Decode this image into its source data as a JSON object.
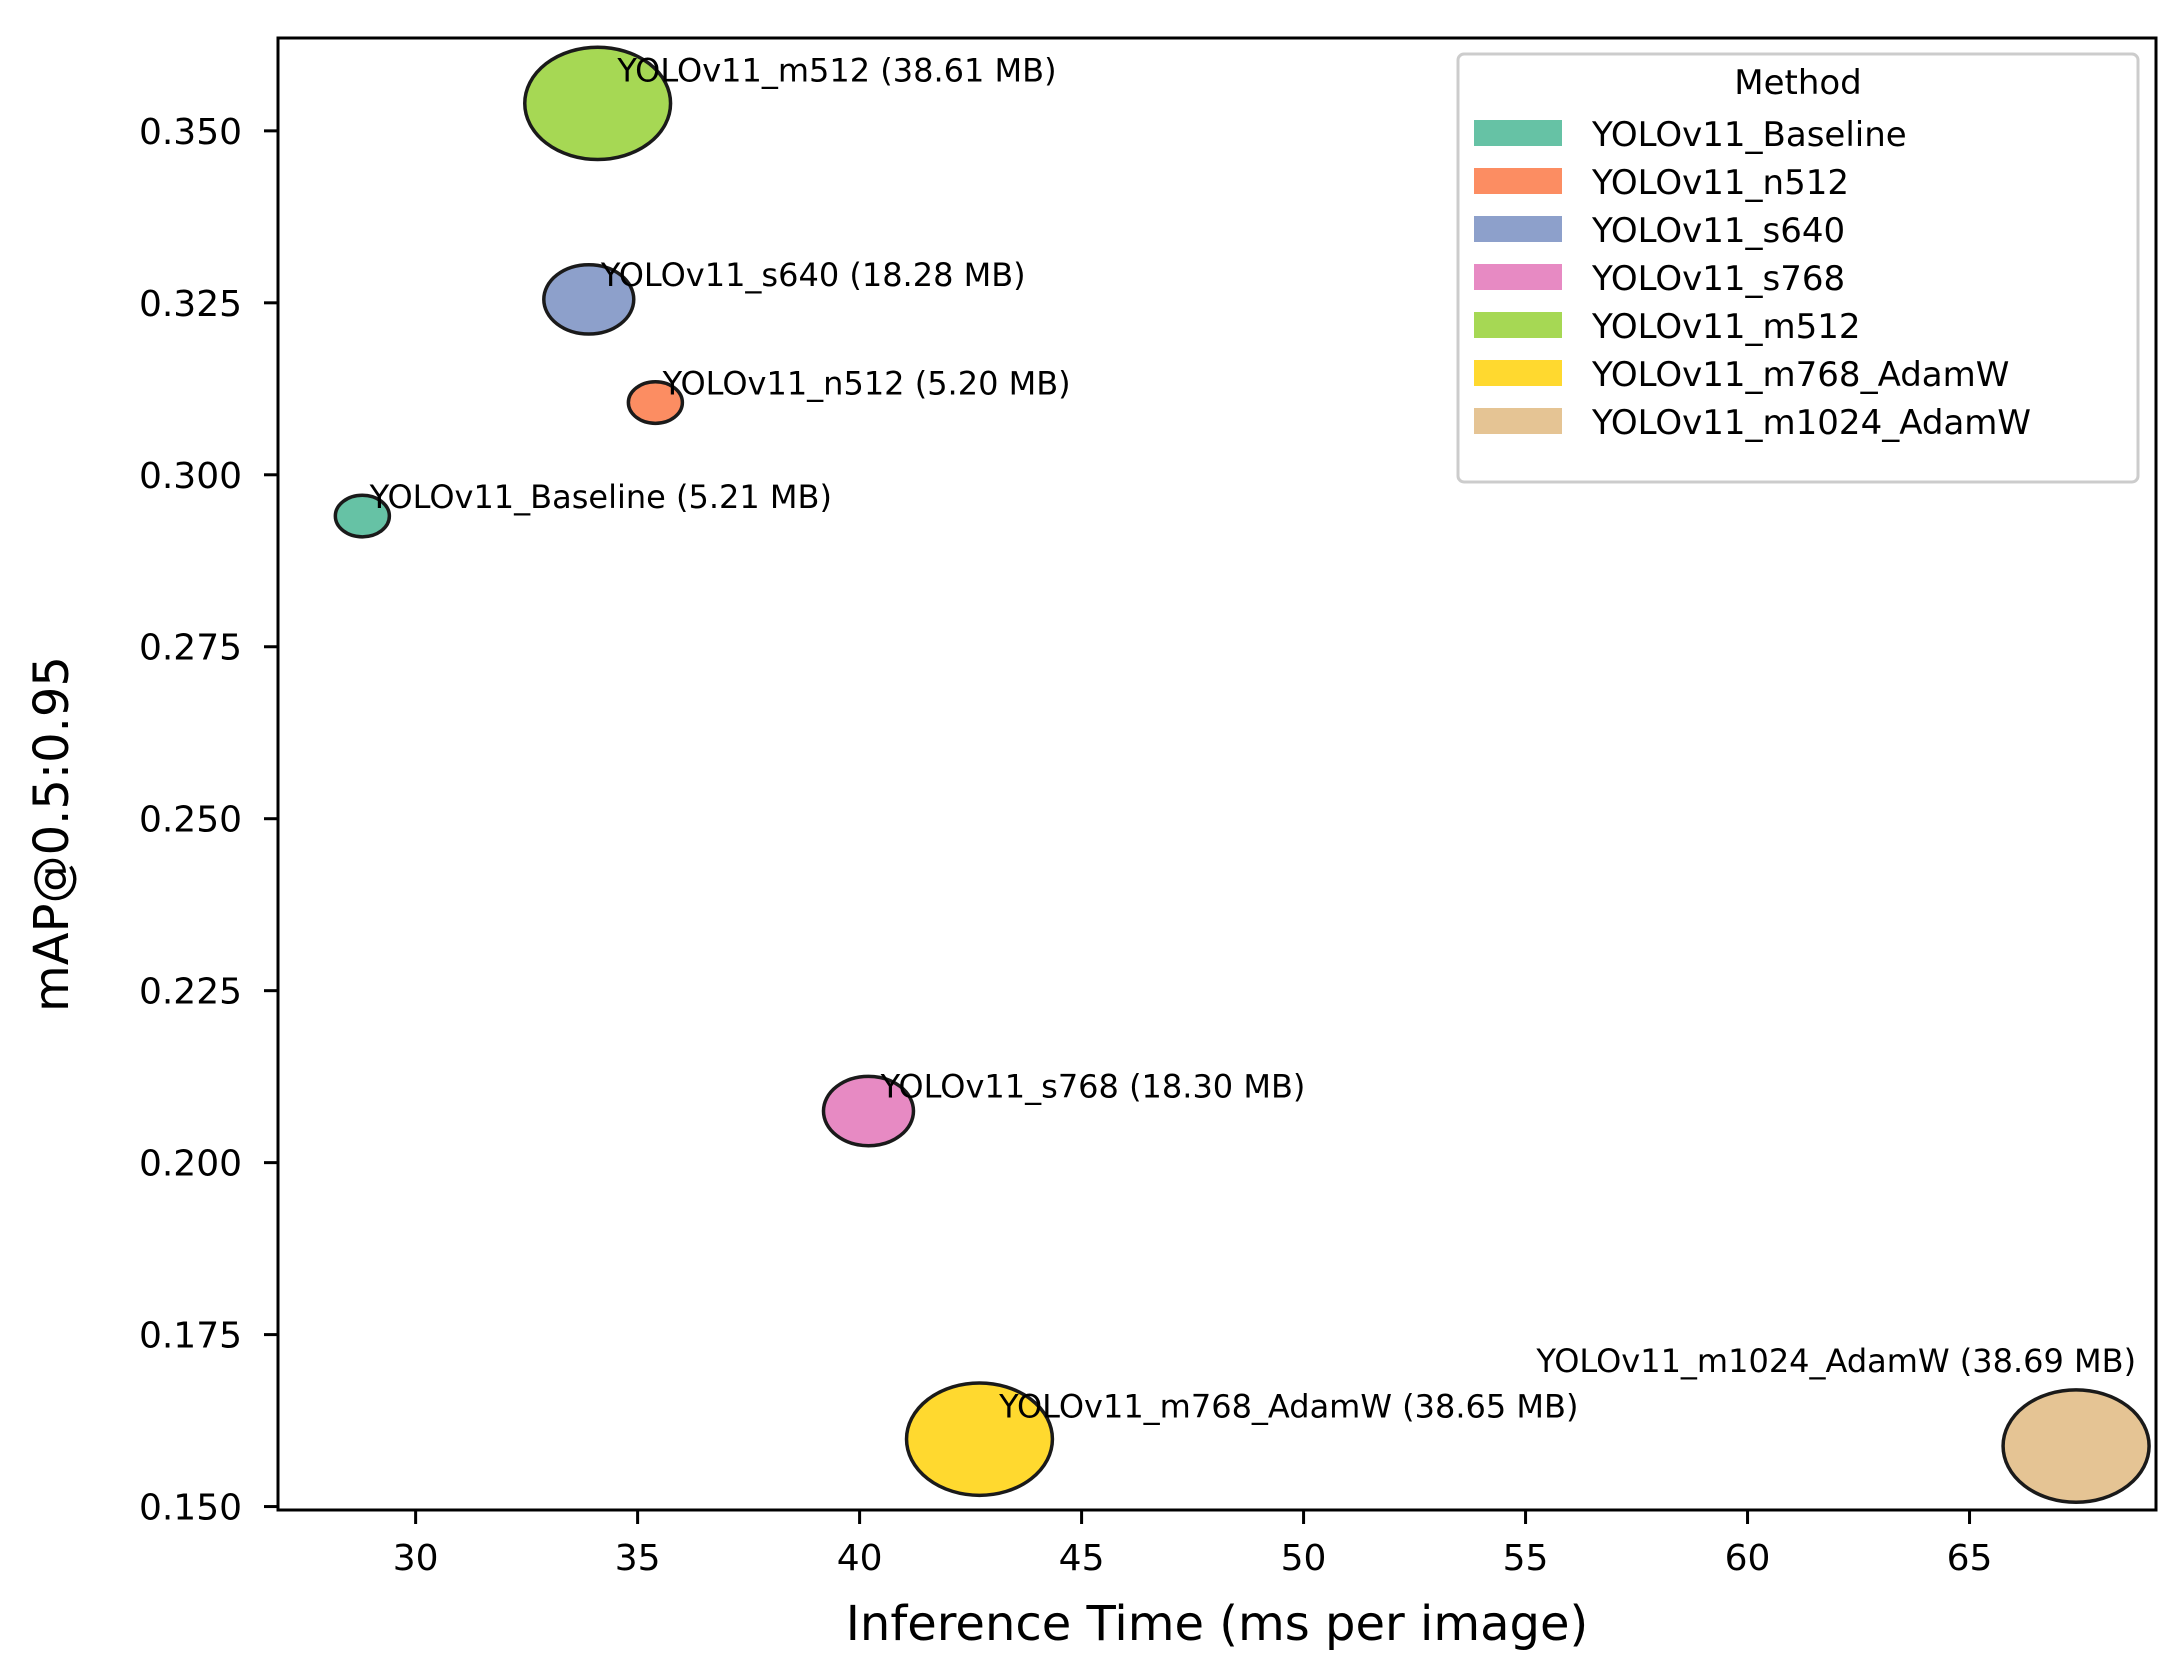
{
  "chart_data": {
    "type": "scatter",
    "title": "",
    "xlabel": "Inference Time (ms per image)",
    "ylabel": "mAP@0.5:0.95",
    "xlim": [
      26.9,
      69.2
    ],
    "ylim": [
      0.1495,
      0.3635
    ],
    "xticks": [
      30,
      35,
      40,
      45,
      50,
      55,
      60,
      65
    ],
    "yticks": [
      0.15,
      0.175,
      0.2,
      0.225,
      0.25,
      0.275,
      0.3,
      0.325,
      0.35
    ],
    "xtick_labels": [
      "30",
      "35",
      "40",
      "45",
      "50",
      "55",
      "60",
      "65"
    ],
    "ytick_labels": [
      "0.150",
      "0.175",
      "0.200",
      "0.225",
      "0.250",
      "0.275",
      "0.300",
      "0.325",
      "0.350"
    ],
    "grid": false,
    "legend_position": "top-right",
    "legend_title": "Method",
    "series": [
      {
        "name": "YOLOv11_Baseline",
        "x": 28.8,
        "y": 0.294,
        "size_mb": 5.21,
        "color": "#66c2a5",
        "label": "YOLOv11_Baseline (5.21 MB)"
      },
      {
        "name": "YOLOv11_n512",
        "x": 35.4,
        "y": 0.3105,
        "size_mb": 5.2,
        "color": "#fc8d62",
        "label": "YOLOv11_n512 (5.20 MB)"
      },
      {
        "name": "YOLOv11_s640",
        "x": 33.9,
        "y": 0.3255,
        "size_mb": 18.28,
        "color": "#8da0cb",
        "label": "YOLOv11_s640 (18.28 MB)"
      },
      {
        "name": "YOLOv11_s768",
        "x": 40.2,
        "y": 0.2075,
        "size_mb": 18.3,
        "color": "#e78ac3",
        "label": "YOLOv11_s768 (18.30 MB)"
      },
      {
        "name": "YOLOv11_m512",
        "x": 34.1,
        "y": 0.354,
        "size_mb": 38.61,
        "color": "#a6d854",
        "label": "YOLOv11_m512 (38.61 MB)"
      },
      {
        "name": "YOLOv11_m768_AdamW",
        "x": 42.7,
        "y": 0.1598,
        "size_mb": 38.65,
        "color": "#ffd92f",
        "label": "YOLOv11_m768_AdamW (38.65 MB)"
      },
      {
        "name": "YOLOv11_m1024_AdamW",
        "x": 67.4,
        "y": 0.1588,
        "size_mb": 38.69,
        "color": "#e5c494",
        "label": "YOLOv11_m1024_AdamW (38.69 MB)"
      }
    ]
  }
}
